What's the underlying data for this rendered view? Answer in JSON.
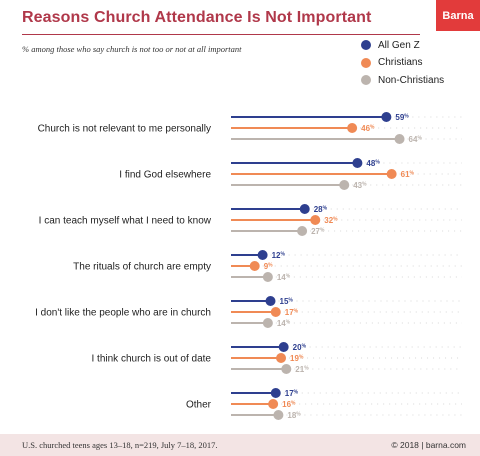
{
  "header": {
    "title": "Reasons Church Attendance Is Not Important",
    "subtitle": "% among those who say church is not too or not at all important",
    "brand": "Barna"
  },
  "legend": [
    {
      "name": "All Gen Z",
      "color": "#2e3f8f"
    },
    {
      "name": "Christians",
      "color": "#f08a55"
    },
    {
      "name": "Non-Christians",
      "color": "#bcb4ae"
    }
  ],
  "footer": {
    "source": "U.S. churched teens ages 13–18, n=219, July 7–18, 2017.",
    "credit": "© 2018 | barna.com"
  },
  "chart_data": {
    "type": "bar",
    "title": "Reasons Church Attendance Is Not Important",
    "subtitle": "% among those who say church is not too or not at all important",
    "xlabel": "",
    "ylabel": "",
    "xlim": [
      0,
      100
    ],
    "value_suffix": "%",
    "legend_position": "top-right",
    "categories": [
      "Church is not relevant to me personally",
      "I find God elsewhere",
      "I can teach myself what I need to know",
      "The rituals of church are empty",
      "I don't like the people who are in church",
      "I think church is out of date",
      "Other"
    ],
    "series": [
      {
        "name": "All Gen Z",
        "color": "#2e3f8f",
        "values": [
          59,
          48,
          28,
          12,
          15,
          20,
          17
        ]
      },
      {
        "name": "Christians",
        "color": "#f08a55",
        "values": [
          46,
          61,
          32,
          9,
          17,
          19,
          16
        ]
      },
      {
        "name": "Non-Christians",
        "color": "#bcb4ae",
        "values": [
          64,
          43,
          27,
          14,
          14,
          21,
          18
        ]
      }
    ]
  }
}
